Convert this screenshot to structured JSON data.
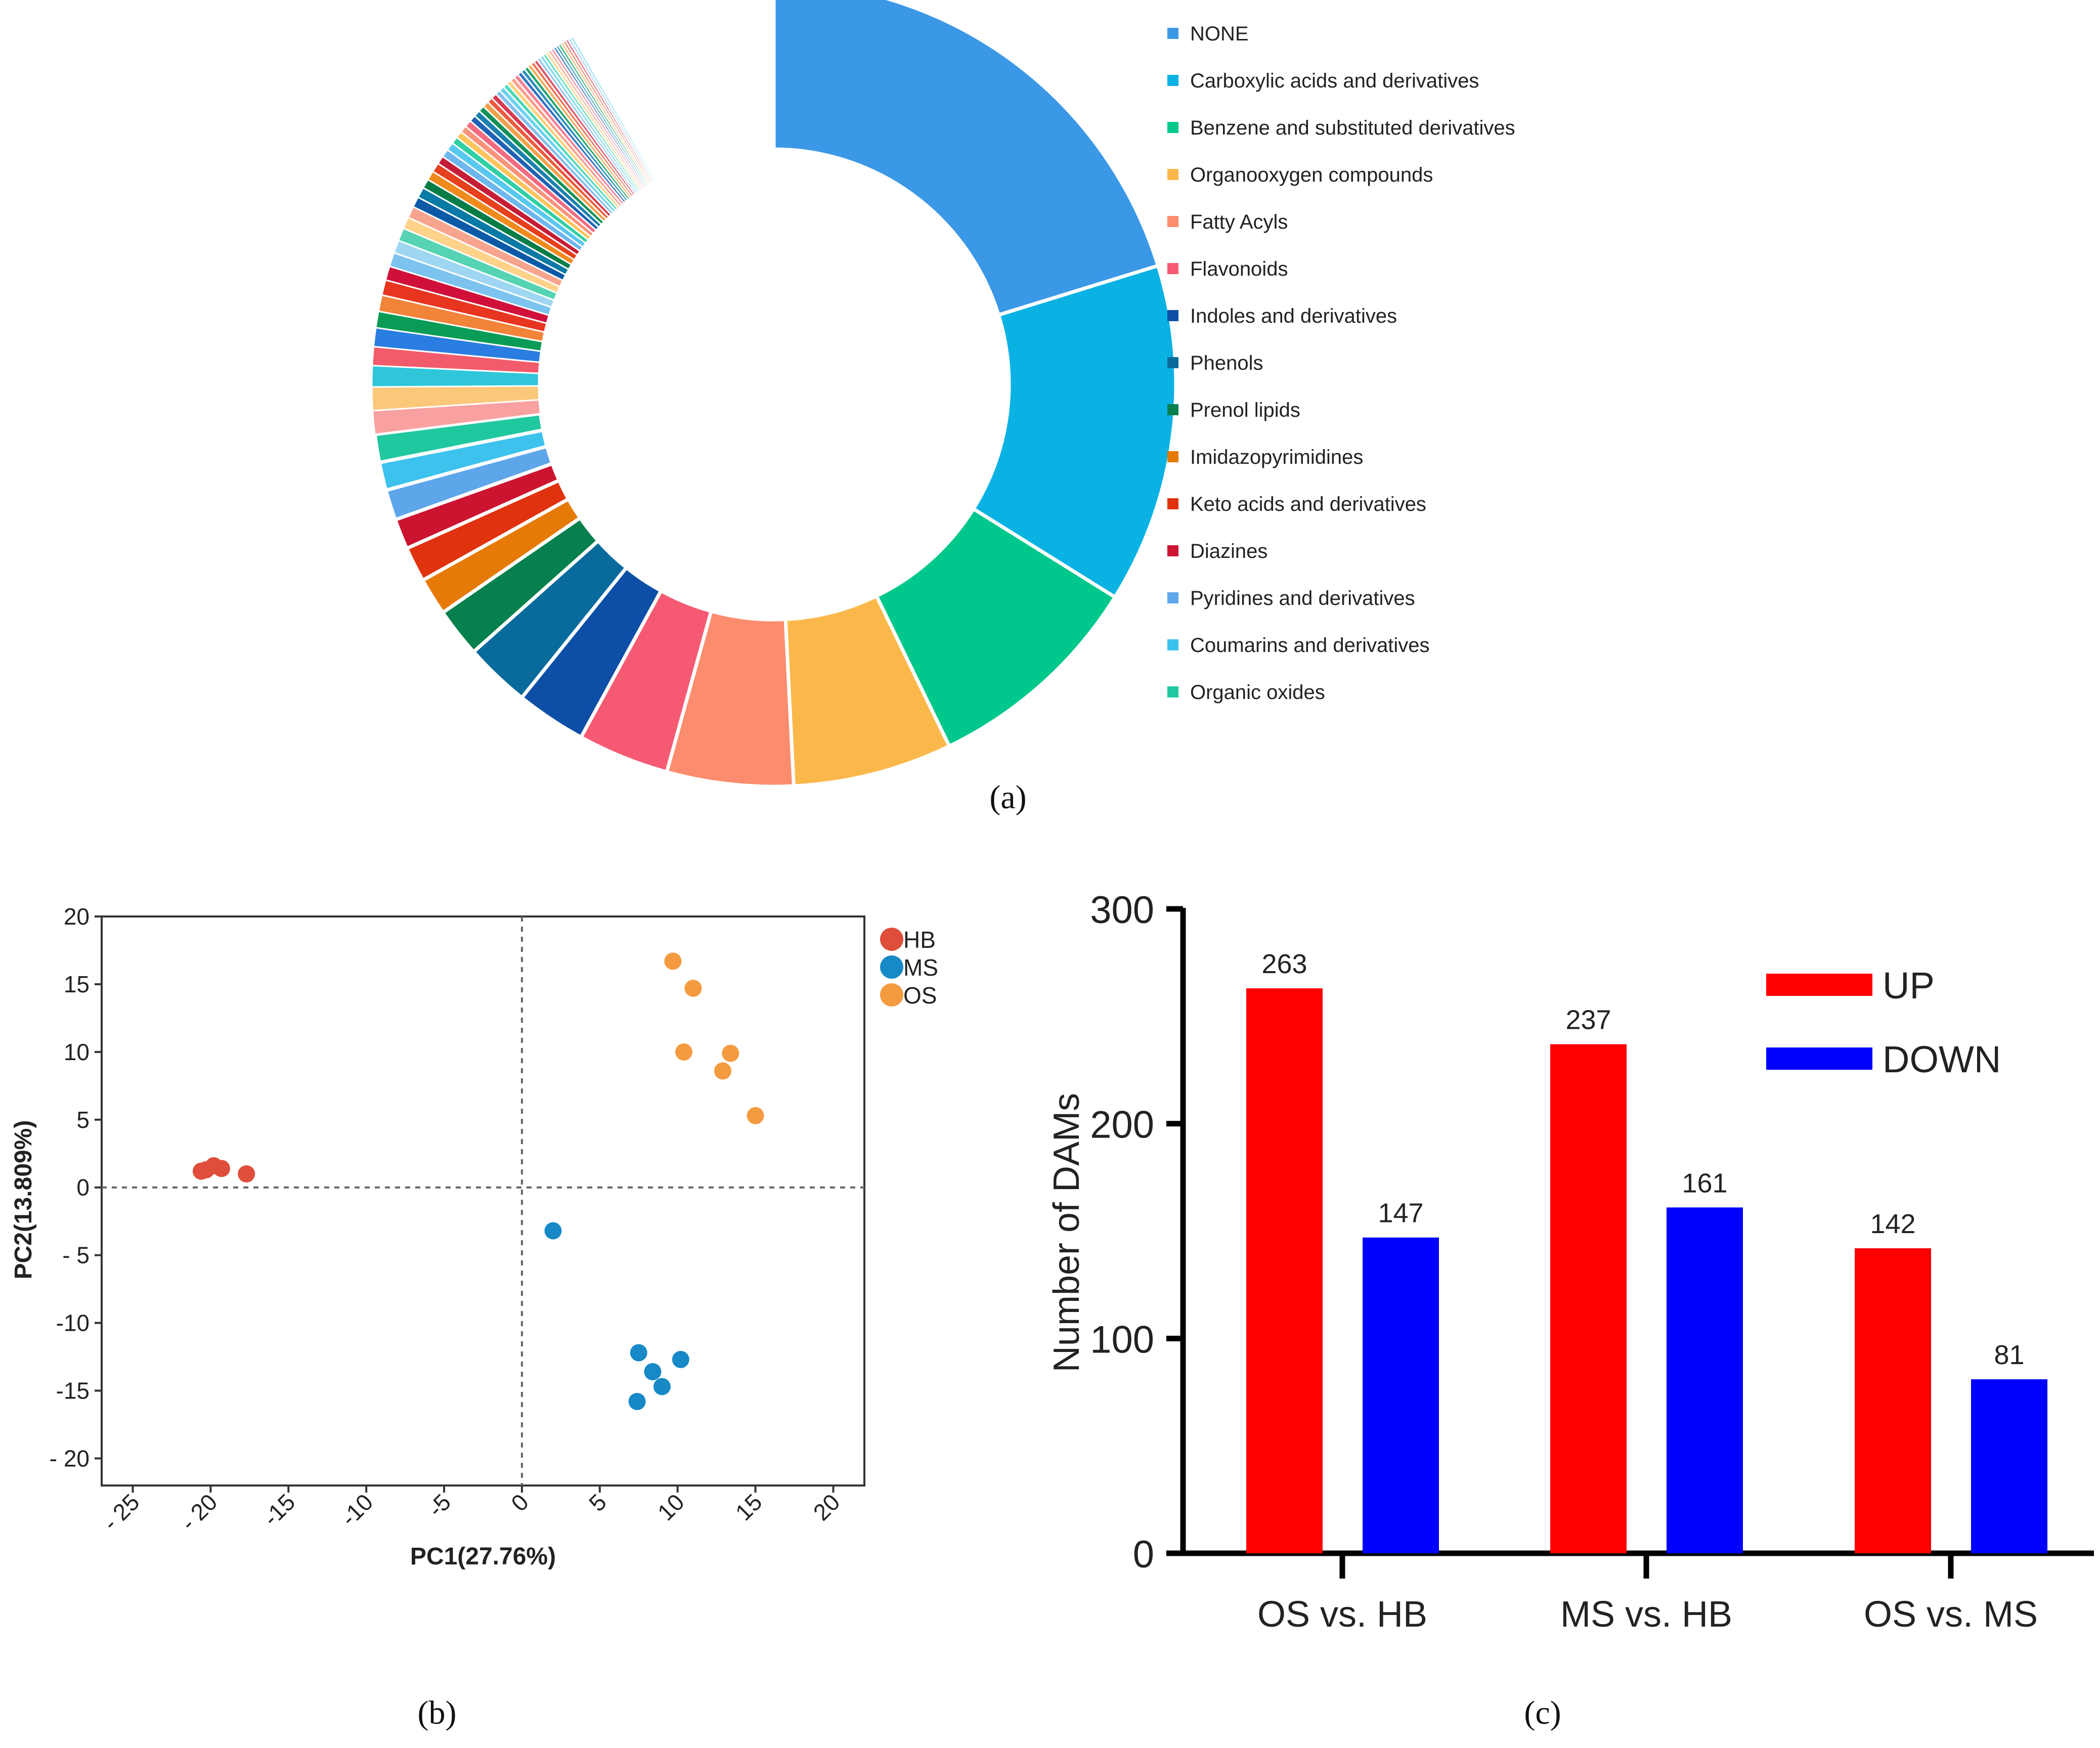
{
  "chart_data": [
    {
      "panel": "a",
      "type": "pie",
      "style": "donut",
      "caption": "(a)",
      "legend": [
        {
          "label": "NONE",
          "color": "#3b98e6"
        },
        {
          "label": "Carboxylic acids and derivatives",
          "color": "#0ab2e4"
        },
        {
          "label": "Benzene and substituted derivatives",
          "color": "#00c88c"
        },
        {
          "label": "Organooxygen compounds",
          "color": "#fbb84a"
        },
        {
          "label": "Fatty Acyls",
          "color": "#fb8c6e"
        },
        {
          "label": "Flavonoids",
          "color": "#f55a72"
        },
        {
          "label": "Indoles and derivatives",
          "color": "#0d4ea6"
        },
        {
          "label": "Phenols",
          "color": "#096b9c"
        },
        {
          "label": "Prenol lipids",
          "color": "#06804c"
        },
        {
          "label": "Imidazopyrimidines",
          "color": "#e57a06"
        },
        {
          "label": "Keto acids and derivatives",
          "color": "#e0320e"
        },
        {
          "label": "Diazines",
          "color": "#cc1430"
        },
        {
          "label": "Pyridines and derivatives",
          "color": "#5ea6ea"
        },
        {
          "label": "Coumarins and derivatives",
          "color": "#3cc2ec"
        },
        {
          "label": "Organic oxides",
          "color": "#20c8a0"
        }
      ],
      "slices": [
        {
          "label": "NONE",
          "value": 21.5
        },
        {
          "label": "Carboxylic acids and derivatives",
          "value": 14.5
        },
        {
          "label": "Benzene and substituted derivatives",
          "value": 9.5
        },
        {
          "label": "Organooxygen compounds",
          "value": 6.8
        },
        {
          "label": "Fatty Acyls",
          "value": 5.4
        },
        {
          "label": "Flavonoids",
          "value": 3.9
        },
        {
          "label": "Indoles and derivatives",
          "value": 3.0
        },
        {
          "label": "Phenols",
          "value": 2.8
        },
        {
          "label": "Prenol lipids",
          "value": 2.1
        },
        {
          "label": "Imidazopyrimidines",
          "value": 1.6
        },
        {
          "label": "Keto acids and derivatives",
          "value": 1.5
        },
        {
          "label": "Diazines",
          "value": 1.3
        },
        {
          "label": "Pyridines and derivatives",
          "value": 1.3
        },
        {
          "label": "Coumarins and derivatives",
          "value": 1.2
        },
        {
          "label": "Organic oxides",
          "value": 1.2
        }
      ],
      "minor_slices": {
        "values": [
          1.0,
          1.0,
          0.9,
          0.8,
          0.8,
          0.7,
          0.7,
          0.65,
          0.6,
          0.6,
          0.55,
          0.55,
          0.5,
          0.5,
          0.45,
          0.45,
          0.4,
          0.4,
          0.4,
          0.35,
          0.35,
          0.35,
          0.3,
          0.3,
          0.3,
          0.3,
          0.28,
          0.28,
          0.26,
          0.26,
          0.24,
          0.24,
          0.22,
          0.22,
          0.2,
          0.2,
          0.2,
          0.2,
          0.18,
          0.18,
          0.17,
          0.17,
          0.16,
          0.16,
          0.15,
          0.15,
          0.14,
          0.14,
          0.13,
          0.13,
          0.12,
          0.12,
          0.12,
          0.12,
          0.12,
          0.12,
          0.12,
          0.12
        ],
        "colors": [
          "#f9a0a0",
          "#fbc87a",
          "#2fc6d9",
          "#f25b6b",
          "#2a7de1",
          "#0a9c56",
          "#f2843a",
          "#e8351f",
          "#d0103a",
          "#7cc4ef",
          "#9fd7f2",
          "#55d3b2",
          "#ffd28a",
          "#f7a48f",
          "#0b5aa7",
          "#087aa5",
          "#067d47",
          "#ef8a1c",
          "#e7401d",
          "#c51d37",
          "#6eb6ee",
          "#58c8ee",
          "#31cfa6",
          "#ffc45c",
          "#fb927a",
          "#f46a80",
          "#1f62b5",
          "#1a81ad",
          "#139258",
          "#f3a04a",
          "#ee5a3b",
          "#d63a52",
          "#86bff0",
          "#6dd2f1",
          "#4fd8b7",
          "#ffd07a",
          "#fda08c",
          "#f5849a",
          "#3373c2",
          "#2b92b8",
          "#25a46a",
          "#f5ae62",
          "#f27456",
          "#de5669",
          "#9bcaf2",
          "#84dbf3",
          "#6fe0c2",
          "#ffdb96",
          "#fdb3a1",
          "#f79cae",
          "#4d86cc",
          "#44a2c3",
          "#3fb47e",
          "#f7bd7d",
          "#f58c73",
          "#e6727f",
          "#b0d5f4",
          "#9ee3f5"
        ]
      }
    },
    {
      "panel": "b",
      "type": "scatter",
      "caption": "(b)",
      "xlabel": "PC1(27.76%)",
      "ylabel": "PC2(13.809%)",
      "xlim": [
        -27,
        22
      ],
      "ylim": [
        -22,
        20
      ],
      "xticks": [
        -25,
        -20,
        -15,
        -10,
        -5,
        0,
        5,
        10,
        15,
        20
      ],
      "yticks": [
        20,
        15,
        10,
        5,
        0,
        -5,
        -10,
        -15,
        -20
      ],
      "xtick_labels": [
        "- 25",
        "- 20",
        "-15",
        "-10",
        "-5",
        "0",
        "5",
        "10",
        "15",
        "20"
      ],
      "ytick_labels": [
        "20",
        "15",
        "10",
        "5",
        "0",
        "- 5",
        "-10",
        "-15",
        "- 20"
      ],
      "series": [
        {
          "name": "HB",
          "color": "#de4e3a",
          "points": [
            [
              -20.6,
              1.2
            ],
            [
              -20.3,
              1.3
            ],
            [
              -19.8,
              1.6
            ],
            [
              -19.3,
              1.4
            ],
            [
              -17.7,
              1.0
            ]
          ]
        },
        {
          "name": "MS",
          "color": "#1689c6",
          "points": [
            [
              2.0,
              -3.2
            ],
            [
              7.5,
              -12.2
            ],
            [
              8.4,
              -13.6
            ],
            [
              10.2,
              -12.7
            ],
            [
              9.0,
              -14.7
            ],
            [
              7.4,
              -15.8
            ]
          ]
        },
        {
          "name": "OS",
          "color": "#f49b40",
          "points": [
            [
              9.7,
              16.7
            ],
            [
              11.0,
              14.7
            ],
            [
              10.4,
              10.0
            ],
            [
              13.4,
              9.9
            ],
            [
              12.9,
              8.6
            ],
            [
              15.0,
              5.3
            ]
          ]
        }
      ]
    },
    {
      "panel": "c",
      "type": "bar",
      "caption": "(c)",
      "ylabel": "Number of DAMs",
      "ylim": [
        0,
        300
      ],
      "yticks": [
        0,
        100,
        200,
        300
      ],
      "categories": [
        "OS vs. HB",
        "MS vs. HB",
        "OS vs. MS"
      ],
      "series": [
        {
          "name": "UP",
          "color": "#ff0000",
          "values": [
            263,
            237,
            142
          ]
        },
        {
          "name": "DOWN",
          "color": "#0000ff",
          "values": [
            147,
            161,
            81
          ]
        }
      ]
    }
  ]
}
